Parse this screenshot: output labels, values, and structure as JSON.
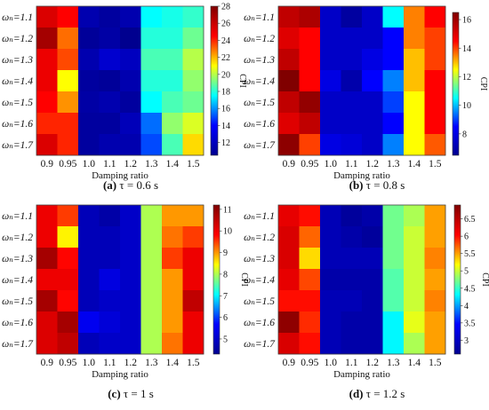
{
  "figure": {
    "row_labels": [
      "ωₙ=1.1",
      "ωₙ=1.2",
      "ωₙ=1.3",
      "ωₙ=1.4",
      "ωₙ=1.5",
      "ωₙ=1.6",
      "ωₙ=1.7"
    ],
    "col_labels": [
      "0.9",
      "0.95",
      "1.0",
      "1.1",
      "1.2",
      "1.3",
      "1.4",
      "1.5"
    ],
    "xlabel": "Damping ratio",
    "colorbar_label": "CPI",
    "colormap": [
      "#00008f",
      "#0000ff",
      "#00ffff",
      "#ffff00",
      "#ff0000",
      "#800000"
    ]
  },
  "chart_data": [
    {
      "type": "heatmap",
      "panel_label": "(a)",
      "caption": "τ = 0.6 s",
      "xlabel": "Damping ratio",
      "colorbar_label": "CPI",
      "vmin": 10.5,
      "vmax": 28,
      "colorbar_ticks": [
        12,
        14,
        16,
        18,
        20,
        22,
        24,
        26,
        28
      ],
      "x": [
        "0.9",
        "0.95",
        "1.0",
        "1.1",
        "1.2",
        "1.3",
        "1.4",
        "1.5"
      ],
      "y": [
        "ωₙ=1.1",
        "ωₙ=1.2",
        "ωₙ=1.3",
        "ωₙ=1.4",
        "ωₙ=1.5",
        "ωₙ=1.6",
        "ωₙ=1.7"
      ],
      "values": [
        [
          25.5,
          24.5,
          11.5,
          11.0,
          11.5,
          17.5,
          17.8,
          18.2
        ],
        [
          27.0,
          23.0,
          10.8,
          11.2,
          10.5,
          18.0,
          18.0,
          19.0
        ],
        [
          25.0,
          23.5,
          11.5,
          12.5,
          12.0,
          18.5,
          18.5,
          20.0
        ],
        [
          25.0,
          21.0,
          11.0,
          10.8,
          11.5,
          18.0,
          18.0,
          19.5
        ],
        [
          24.5,
          22.5,
          11.2,
          11.5,
          11.0,
          17.5,
          18.5,
          19.0
        ],
        [
          24.0,
          24.0,
          11.0,
          11.0,
          11.8,
          15.5,
          19.5,
          20.5
        ],
        [
          25.5,
          24.0,
          11.0,
          11.5,
          11.5,
          15.0,
          18.5,
          21.5
        ]
      ]
    },
    {
      "type": "heatmap",
      "panel_label": "(b)",
      "caption": "τ = 0.8 s",
      "xlabel": "Damping ratio",
      "colorbar_label": "CPI",
      "vmin": 6.5,
      "vmax": 16.5,
      "colorbar_ticks": [
        8,
        10,
        12,
        14,
        16
      ],
      "x": [
        "0.9",
        "0.95",
        "1.0",
        "1.1",
        "1.2",
        "1.3",
        "1.4",
        "1.5"
      ],
      "y": [
        "ωₙ=1.1",
        "ωₙ=1.2",
        "ωₙ=1.3",
        "ωₙ=1.4",
        "ωₙ=1.5",
        "ωₙ=1.6",
        "ωₙ=1.7"
      ],
      "values": [
        [
          15.5,
          15.8,
          7.5,
          6.8,
          7.5,
          10.5,
          13.5,
          14.5
        ],
        [
          15.0,
          14.5,
          7.5,
          7.5,
          7.5,
          8.5,
          13.5,
          14.0
        ],
        [
          15.5,
          14.5,
          7.5,
          7.5,
          8.0,
          8.5,
          13.0,
          14.0
        ],
        [
          16.5,
          14.5,
          8.0,
          7.0,
          8.5,
          9.5,
          13.0,
          14.5
        ],
        [
          15.5,
          16.2,
          7.5,
          7.5,
          7.5,
          9.0,
          12.5,
          14.5
        ],
        [
          15.0,
          15.5,
          7.5,
          7.5,
          7.5,
          8.5,
          12.5,
          14.5
        ],
        [
          16.3,
          14.0,
          8.0,
          7.8,
          7.5,
          9.5,
          12.5,
          13.8
        ]
      ]
    },
    {
      "type": "heatmap",
      "panel_label": "(c)",
      "caption": "τ = 1 s",
      "xlabel": "Damping ratio",
      "colorbar_label": "CPI",
      "vmin": 4.3,
      "vmax": 11.2,
      "colorbar_ticks": [
        5,
        6,
        7,
        8,
        9,
        10,
        11
      ],
      "x": [
        "0.9",
        "0.95",
        "1.0",
        "1.1",
        "1.2",
        "1.3",
        "1.4",
        "1.5"
      ],
      "y": [
        "ωₙ=1.1",
        "ωₙ=1.2",
        "ωₙ=1.3",
        "ωₙ=1.4",
        "ωₙ=1.5",
        "ωₙ=1.6",
        "ωₙ=1.7"
      ],
      "values": [
        [
          10.0,
          9.5,
          4.8,
          4.6,
          5.0,
          8.0,
          9.0,
          9.0
        ],
        [
          10.0,
          8.5,
          4.8,
          4.8,
          5.0,
          8.0,
          9.2,
          9.5
        ],
        [
          10.8,
          9.8,
          4.8,
          4.8,
          5.0,
          8.0,
          9.5,
          10.0
        ],
        [
          10.0,
          10.0,
          4.8,
          5.3,
          5.0,
          8.0,
          9.0,
          10.0
        ],
        [
          10.8,
          9.8,
          4.8,
          5.0,
          5.0,
          8.0,
          9.0,
          10.5
        ],
        [
          10.2,
          10.8,
          5.5,
          5.2,
          5.0,
          8.0,
          9.0,
          10.0
        ],
        [
          10.2,
          10.5,
          4.8,
          5.0,
          5.0,
          8.0,
          9.2,
          10.0
        ]
      ]
    },
    {
      "type": "heatmap",
      "panel_label": "(d)",
      "caption": "τ = 1.2 s",
      "xlabel": "Damping ratio",
      "colorbar_label": "CPI",
      "vmin": 2.6,
      "vmax": 6.9,
      "colorbar_ticks": [
        3,
        3.5,
        4,
        4.5,
        5,
        5.5,
        6,
        6.5
      ],
      "x": [
        "0.9",
        "0.95",
        "1.0",
        "1.1",
        "1.2",
        "1.3",
        "1.4",
        "1.5"
      ],
      "y": [
        "ωₙ=1.1",
        "ωₙ=1.2",
        "ωₙ=1.3",
        "ωₙ=1.4",
        "ωₙ=1.5",
        "ωₙ=1.6",
        "ωₙ=1.7"
      ],
      "values": [
        [
          6.2,
          6.0,
          2.9,
          2.7,
          2.8,
          4.7,
          4.9,
          5.5
        ],
        [
          6.3,
          5.7,
          2.9,
          2.8,
          2.7,
          4.7,
          5.0,
          5.5
        ],
        [
          6.3,
          5.3,
          2.9,
          2.9,
          2.9,
          4.7,
          5.0,
          5.6
        ],
        [
          6.2,
          5.8,
          2.8,
          2.8,
          2.8,
          4.6,
          5.0,
          5.5
        ],
        [
          6.0,
          6.0,
          2.9,
          2.9,
          2.8,
          4.6,
          5.0,
          5.6
        ],
        [
          6.8,
          5.9,
          2.9,
          2.8,
          2.8,
          4.3,
          5.1,
          5.5
        ],
        [
          6.3,
          6.0,
          2.9,
          2.8,
          2.8,
          4.3,
          4.9,
          5.5
        ]
      ]
    }
  ]
}
